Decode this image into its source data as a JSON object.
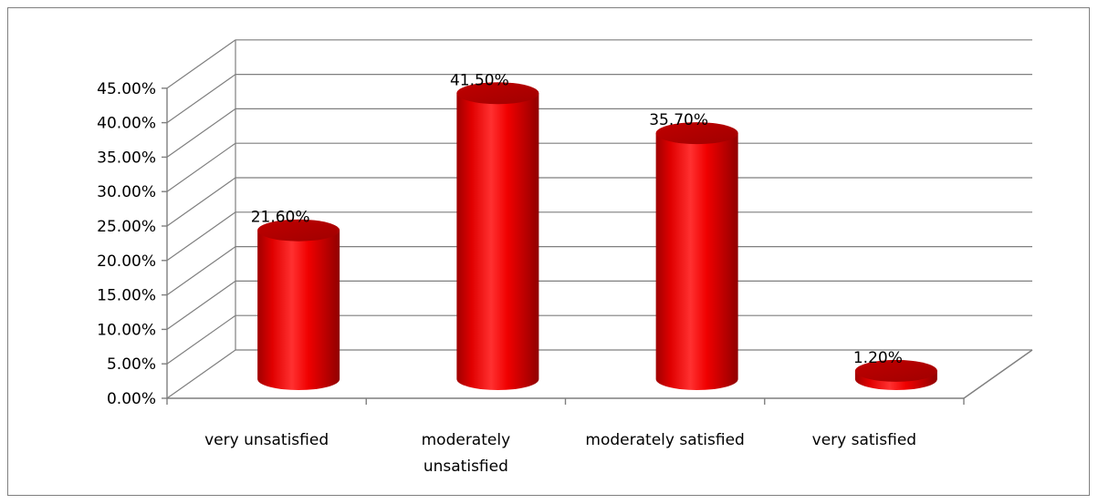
{
  "chart_data": {
    "type": "bar",
    "style": "3d-cylinder",
    "categories": [
      "very unsatisfied",
      "moderately unsatisfied",
      "moderately satisfied",
      "very satisfied"
    ],
    "category_lines": [
      [
        "very unsatisfied"
      ],
      [
        "moderately",
        "unsatisfied"
      ],
      [
        "moderately satisfied"
      ],
      [
        "very satisfied"
      ]
    ],
    "values": [
      21.6,
      41.5,
      35.7,
      1.2
    ],
    "data_labels": [
      "21.60%",
      "41.50%",
      "35.70%",
      "1.20%"
    ],
    "y_ticks": [
      0,
      5,
      10,
      15,
      20,
      25,
      30,
      35,
      40,
      45
    ],
    "y_tick_labels": [
      "0.00%",
      "5.00%",
      "10.00%",
      "15.00%",
      "20.00%",
      "25.00%",
      "30.00%",
      "35.00%",
      "40.00%",
      "45.00%"
    ],
    "ylim": [
      0,
      45
    ],
    "title": "",
    "xlabel": "",
    "ylabel": "",
    "grid": true,
    "legend": "none",
    "colors": {
      "bar": "#ff0000",
      "bar_dark": "#b00000",
      "bar_light": "#ff8080",
      "grid": "#7f7f7f",
      "frame": "#7f7f7f"
    }
  }
}
